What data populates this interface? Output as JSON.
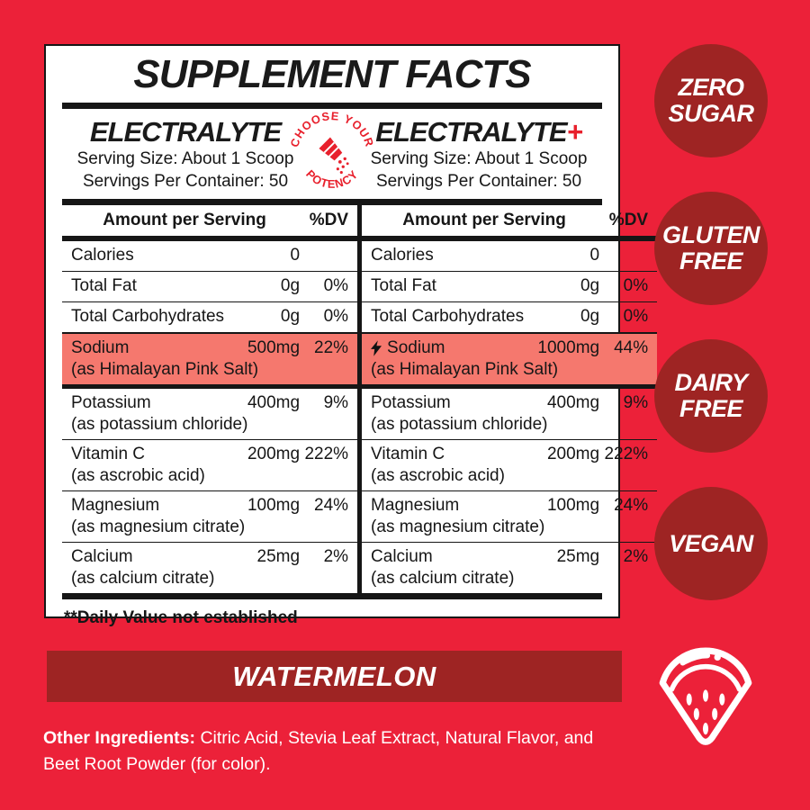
{
  "colors": {
    "background": "#EC2139",
    "maroon": "#9E2423",
    "highlight": "#F5786E",
    "accent": "#E8202C",
    "ink": "#161616"
  },
  "panel": {
    "title": "SUPPLEMENT FACTS",
    "badge": {
      "top_text": "CHOOSE YOUR",
      "bottom_text": "POTENCY",
      "icon": "shaker-icon"
    },
    "footnote": "**Daily Value not established",
    "columns": [
      {
        "heading": "ELECTRALYTE",
        "heading_plus": "",
        "serving_size": "Serving Size: About 1 Scoop",
        "servings_per_container": "Servings Per Container: 50",
        "table_header": {
          "amount": "Amount per Serving",
          "dv": "%DV"
        },
        "rows": [
          {
            "name": "Calories",
            "amount": "0",
            "dv": "",
            "sub": ""
          },
          {
            "name": "Total Fat",
            "amount": "0g",
            "dv": "0%",
            "sub": ""
          },
          {
            "name": "Total Carbohydrates",
            "amount": "0g",
            "dv": "0%",
            "sub": ""
          },
          {
            "name": "Sodium",
            "amount": "500mg",
            "dv": "22%",
            "sub": "(as Himalayan Pink Salt)",
            "highlight": true,
            "bolt": false
          },
          {
            "name": "Potassium",
            "amount": "400mg",
            "dv": "9%",
            "sub": "(as potassium chloride)"
          },
          {
            "name": "Vitamin C",
            "amount": "200mg",
            "dv": "222%",
            "sub": "(as ascrobic acid)"
          },
          {
            "name": "Magnesium",
            "amount": "100mg",
            "dv": "24%",
            "sub": "(as magnesium citrate)"
          },
          {
            "name": "Calcium",
            "amount": "25mg",
            "dv": "2%",
            "sub": "(as calcium citrate)"
          }
        ]
      },
      {
        "heading": "ELECTRALYTE",
        "heading_plus": "+",
        "serving_size": "Serving Size: About 1 Scoop",
        "servings_per_container": "Servings Per Container: 50",
        "table_header": {
          "amount": "Amount per Serving",
          "dv": "%DV"
        },
        "rows": [
          {
            "name": "Calories",
            "amount": "0",
            "dv": "",
            "sub": ""
          },
          {
            "name": "Total Fat",
            "amount": "0g",
            "dv": "0%",
            "sub": ""
          },
          {
            "name": "Total Carbohydrates",
            "amount": "0g",
            "dv": "0%",
            "sub": ""
          },
          {
            "name": "Sodium",
            "amount": "1000mg",
            "dv": "44%",
            "sub": "(as Himalayan Pink Salt)",
            "highlight": true,
            "bolt": true
          },
          {
            "name": "Potassium",
            "amount": "400mg",
            "dv": "9%",
            "sub": "(as potassium chloride)"
          },
          {
            "name": "Vitamin C",
            "amount": "200mg",
            "dv": "222%",
            "sub": "(as ascrobic acid)"
          },
          {
            "name": "Magnesium",
            "amount": "100mg",
            "dv": "24%",
            "sub": "(as magnesium citrate)"
          },
          {
            "name": "Calcium",
            "amount": "25mg",
            "dv": "2%",
            "sub": "(as calcium citrate)"
          }
        ]
      }
    ]
  },
  "claims": [
    {
      "line1": "ZERO",
      "line2": "SUGAR"
    },
    {
      "line1": "GLUTEN",
      "line2": "FREE"
    },
    {
      "line1": "DAIRY",
      "line2": "FREE"
    },
    {
      "line1": "VEGAN",
      "line2": ""
    }
  ],
  "flavor": "WATERMELON",
  "other_ingredients": {
    "label": "Other Ingredients:",
    "line1": "Citric Acid, Stevia Leaf Extract, Natural Flavor, and",
    "line2": "Beet Root Powder (for color)."
  },
  "icons": {
    "badge_center": "shaker-icon",
    "sodium_boost": "lightning-bolt-icon",
    "flavor": "watermelon-slice-icon"
  }
}
